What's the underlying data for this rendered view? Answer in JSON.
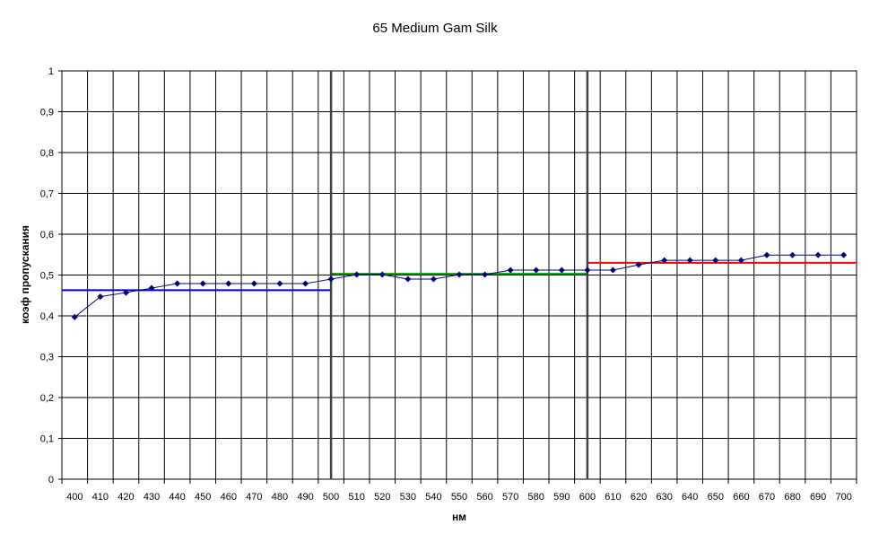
{
  "chart_data": {
    "type": "line",
    "title": "65 Medium Gam Silk",
    "xlabel": "нм",
    "ylabel": "коэф пропускания",
    "xlim": [
      395,
      705
    ],
    "ylim": [
      0,
      1
    ],
    "grid": true,
    "x_ticks": [
      "400",
      "410",
      "420",
      "430",
      "440",
      "450",
      "460",
      "470",
      "480",
      "490",
      "500",
      "510",
      "520",
      "530",
      "540",
      "550",
      "560",
      "570",
      "580",
      "590",
      "600",
      "610",
      "620",
      "630",
      "640",
      "650",
      "660",
      "670",
      "680",
      "690",
      "700"
    ],
    "y_ticks": [
      "0",
      "0,1",
      "0,2",
      "0,3",
      "0,4",
      "0,5",
      "0,6",
      "0,7",
      "0,8",
      "0,9",
      "1"
    ],
    "colors": {
      "series": "#00007f",
      "blue_level": "#0000cc",
      "green_level": "#00a000",
      "red_level": "#ff0000",
      "divider": "#404040"
    },
    "series": [
      {
        "x": [
          400,
          410,
          420,
          430,
          440,
          450,
          460,
          470,
          480,
          490,
          500,
          510,
          520,
          530,
          540,
          550,
          560,
          570,
          580,
          590,
          600,
          610,
          620,
          630,
          640,
          650,
          660,
          670,
          680,
          690,
          700
        ],
        "values": [
          0.397,
          0.447,
          0.457,
          0.468,
          0.479,
          0.479,
          0.479,
          0.479,
          0.479,
          0.479,
          0.49,
          0.501,
          0.501,
          0.49,
          0.49,
          0.501,
          0.501,
          0.512,
          0.512,
          0.512,
          0.512,
          0.512,
          0.525,
          0.536,
          0.536,
          0.536,
          0.536,
          0.549,
          0.549,
          0.549,
          0.549
        ]
      }
    ],
    "band_levels": [
      {
        "x": [
          395,
          500
        ],
        "y": 0.463,
        "color": "blue_level"
      },
      {
        "x": [
          500,
          600
        ],
        "y": 0.503,
        "color": "green_level"
      },
      {
        "x": [
          600,
          705
        ],
        "y": 0.53,
        "color": "red_level"
      }
    ],
    "dividers": [
      500,
      600
    ]
  }
}
